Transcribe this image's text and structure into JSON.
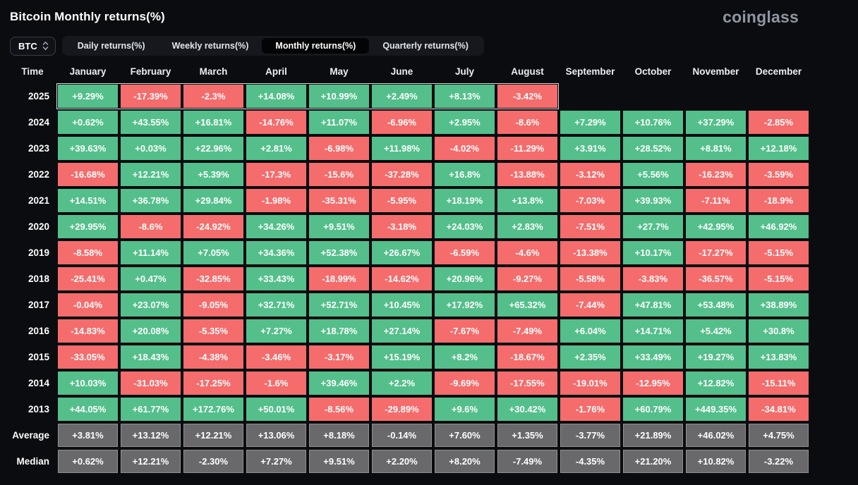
{
  "header": {
    "brand": "coinglass"
  },
  "controls": {
    "symbol_select": {
      "value": "BTC",
      "icon": "select-arrows-icon"
    },
    "tabs": [
      {
        "label": "Daily returns(%)",
        "active": false
      },
      {
        "label": "Weekly returns(%)",
        "active": false
      },
      {
        "label": "Monthly returns(%)",
        "active": true
      },
      {
        "label": "Quarterly returns(%)",
        "active": false
      }
    ]
  },
  "colors": {
    "positive": "#54bf8b",
    "negative": "#f56c6c",
    "summary": "#69696c",
    "background": "#0a0c10",
    "brand_text": "#8f97a1"
  },
  "chart_data": {
    "type": "heatmap",
    "title": "Bitcoin Monthly returns(%)",
    "time_header": "Time",
    "columns": [
      "January",
      "February",
      "March",
      "April",
      "May",
      "June",
      "July",
      "August",
      "September",
      "October",
      "November",
      "December"
    ],
    "rows": [
      {
        "label": "2025",
        "kind": "year",
        "highlight": true,
        "values": [
          "+9.29%",
          "-17.39%",
          "-2.3%",
          "+14.08%",
          "+10.99%",
          "+2.49%",
          "+8.13%",
          "-3.42%",
          null,
          null,
          null,
          null
        ]
      },
      {
        "label": "2024",
        "kind": "year",
        "highlight": false,
        "values": [
          "+0.62%",
          "+43.55%",
          "+16.81%",
          "-14.76%",
          "+11.07%",
          "-6.96%",
          "+2.95%",
          "-8.6%",
          "+7.29%",
          "+10.76%",
          "+37.29%",
          "-2.85%"
        ]
      },
      {
        "label": "2023",
        "kind": "year",
        "highlight": false,
        "values": [
          "+39.63%",
          "+0.03%",
          "+22.96%",
          "+2.81%",
          "-6.98%",
          "+11.98%",
          "-4.02%",
          "-11.29%",
          "+3.91%",
          "+28.52%",
          "+8.81%",
          "+12.18%"
        ]
      },
      {
        "label": "2022",
        "kind": "year",
        "highlight": false,
        "values": [
          "-16.68%",
          "+12.21%",
          "+5.39%",
          "-17.3%",
          "-15.6%",
          "-37.28%",
          "+16.8%",
          "-13.88%",
          "-3.12%",
          "+5.56%",
          "-16.23%",
          "-3.59%"
        ]
      },
      {
        "label": "2021",
        "kind": "year",
        "highlight": false,
        "values": [
          "+14.51%",
          "+36.78%",
          "+29.84%",
          "-1.98%",
          "-35.31%",
          "-5.95%",
          "+18.19%",
          "+13.8%",
          "-7.03%",
          "+39.93%",
          "-7.11%",
          "-18.9%"
        ]
      },
      {
        "label": "2020",
        "kind": "year",
        "highlight": false,
        "values": [
          "+29.95%",
          "-8.6%",
          "-24.92%",
          "+34.26%",
          "+9.51%",
          "-3.18%",
          "+24.03%",
          "+2.83%",
          "-7.51%",
          "+27.7%",
          "+42.95%",
          "+46.92%"
        ]
      },
      {
        "label": "2019",
        "kind": "year",
        "highlight": false,
        "values": [
          "-8.58%",
          "+11.14%",
          "+7.05%",
          "+34.36%",
          "+52.38%",
          "+26.67%",
          "-6.59%",
          "-4.6%",
          "-13.38%",
          "+10.17%",
          "-17.27%",
          "-5.15%"
        ]
      },
      {
        "label": "2018",
        "kind": "year",
        "highlight": false,
        "values": [
          "-25.41%",
          "+0.47%",
          "-32.85%",
          "+33.43%",
          "-18.99%",
          "-14.62%",
          "+20.96%",
          "-9.27%",
          "-5.58%",
          "-3.83%",
          "-36.57%",
          "-5.15%"
        ]
      },
      {
        "label": "2017",
        "kind": "year",
        "highlight": false,
        "values": [
          "-0.04%",
          "+23.07%",
          "-9.05%",
          "+32.71%",
          "+52.71%",
          "+10.45%",
          "+17.92%",
          "+65.32%",
          "-7.44%",
          "+47.81%",
          "+53.48%",
          "+38.89%"
        ]
      },
      {
        "label": "2016",
        "kind": "year",
        "highlight": false,
        "values": [
          "-14.83%",
          "+20.08%",
          "-5.35%",
          "+7.27%",
          "+18.78%",
          "+27.14%",
          "-7.67%",
          "-7.49%",
          "+6.04%",
          "+14.71%",
          "+5.42%",
          "+30.8%"
        ]
      },
      {
        "label": "2015",
        "kind": "year",
        "highlight": false,
        "values": [
          "-33.05%",
          "+18.43%",
          "-4.38%",
          "-3.46%",
          "-3.17%",
          "+15.19%",
          "+8.2%",
          "-18.67%",
          "+2.35%",
          "+33.49%",
          "+19.27%",
          "+13.83%"
        ]
      },
      {
        "label": "2014",
        "kind": "year",
        "highlight": false,
        "values": [
          "+10.03%",
          "-31.03%",
          "-17.25%",
          "-1.6%",
          "+39.46%",
          "+2.2%",
          "-9.69%",
          "-17.55%",
          "-19.01%",
          "-12.95%",
          "+12.82%",
          "-15.11%"
        ]
      },
      {
        "label": "2013",
        "kind": "year",
        "highlight": false,
        "values": [
          "+44.05%",
          "+61.77%",
          "+172.76%",
          "+50.01%",
          "-8.56%",
          "-29.89%",
          "+9.6%",
          "+30.42%",
          "-1.76%",
          "+60.79%",
          "+449.35%",
          "-34.81%"
        ]
      },
      {
        "label": "Average",
        "kind": "summary",
        "highlight": false,
        "values": [
          "+3.81%",
          "+13.12%",
          "+12.21%",
          "+13.06%",
          "+8.18%",
          "-0.14%",
          "+7.60%",
          "+1.35%",
          "-3.77%",
          "+21.89%",
          "+46.02%",
          "+4.75%"
        ]
      },
      {
        "label": "Median",
        "kind": "summary",
        "highlight": false,
        "values": [
          "+0.62%",
          "+12.21%",
          "-2.30%",
          "+7.27%",
          "+9.51%",
          "+2.20%",
          "+8.20%",
          "-7.49%",
          "-4.35%",
          "+21.20%",
          "+10.82%",
          "-3.22%"
        ]
      }
    ]
  }
}
